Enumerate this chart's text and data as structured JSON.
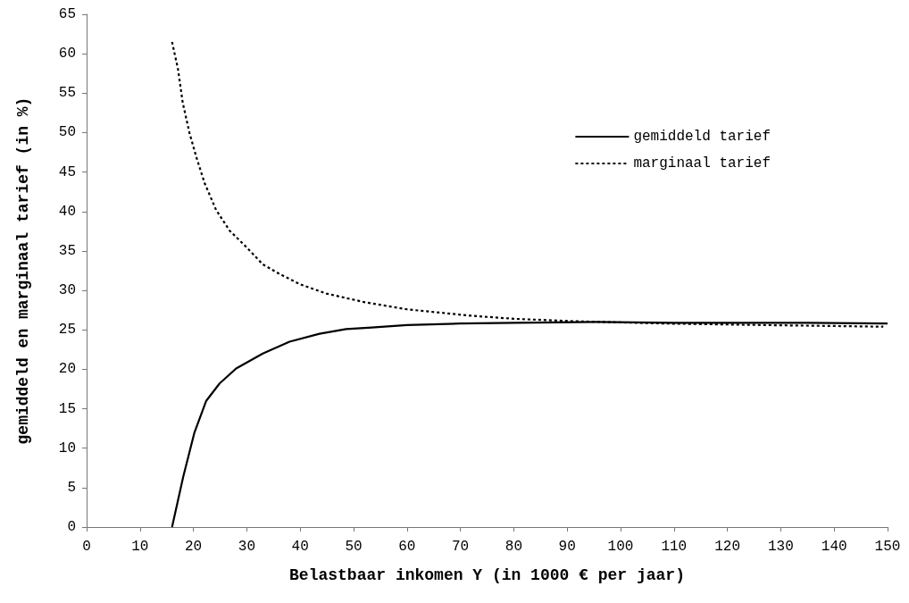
{
  "chart_data": {
    "type": "line",
    "xlabel": "Belastbaar inkomen Y (in 1000 € per jaar)",
    "ylabel": "gemiddeld en marginaal tarief (in %)",
    "xlim": [
      0,
      150
    ],
    "xticks": [
      0,
      10,
      20,
      30,
      40,
      50,
      60,
      70,
      80,
      90,
      100,
      110,
      120,
      130,
      140,
      150
    ],
    "ylim": [
      0,
      65
    ],
    "yticks": [
      0,
      5,
      10,
      15,
      20,
      25,
      30,
      35,
      40,
      45,
      50,
      55,
      60,
      65
    ],
    "grid": false,
    "legend": "top right",
    "marker": "none",
    "series": [
      {
        "name": "gemiddeld tarief",
        "color": "#000000",
        "line_style": "solid",
        "x": [
          16,
          18.1,
          20.2,
          22.4,
          24.9,
          28,
          33,
          38,
          43.6,
          48.6,
          53.4,
          60,
          69.9,
          80,
          95.5,
          110,
          121,
          135,
          150
        ],
        "values": [
          0,
          6.4,
          12,
          16,
          18.2,
          20.1,
          22,
          23.5,
          24.5,
          25.1,
          25.3,
          25.6,
          25.8,
          25.9,
          26,
          25.9,
          25.9,
          25.9,
          25.8
        ]
      },
      {
        "name": "marginaal tarief",
        "color": "#000000",
        "line_style": "dotted",
        "x": [
          16,
          17.1,
          18,
          19.25,
          20.5,
          22.1,
          24.25,
          26.75,
          29.9,
          33,
          36.1,
          39.9,
          44.9,
          52.1,
          60,
          71.8,
          80,
          91,
          108.3,
          127.5,
          149.2
        ],
        "values": [
          61.5,
          58.1,
          53.8,
          50,
          47,
          43.6,
          40.2,
          37.6,
          35.5,
          33.3,
          32.1,
          30.8,
          29.6,
          28.5,
          27.6,
          26.8,
          26.4,
          26.1,
          25.8,
          25.6,
          25.4
        ]
      }
    ]
  }
}
